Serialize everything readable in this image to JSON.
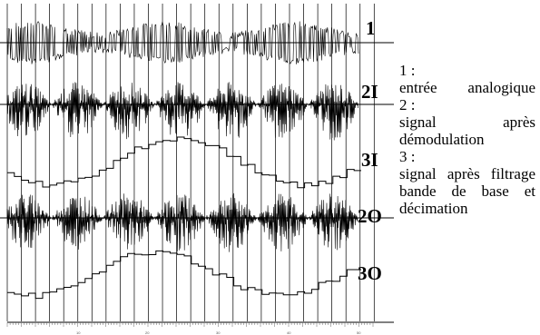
{
  "figure": {
    "channel_labels": [
      "1",
      "2I",
      "3I",
      "2O",
      "3O"
    ],
    "axis_tick_labels": [
      "10",
      "20",
      "30",
      "40",
      "50"
    ]
  },
  "legend": {
    "line1_num": "1 :",
    "line1_text": "entrée analogique",
    "line2_num": "2 :",
    "line2_text": "signal après démodulation",
    "line3_num": "3 :",
    "line3_text": "signal après filtrage bande de base et décimation"
  },
  "colors": {
    "trace": "#000000",
    "grid": "#000000",
    "background": "#ffffff"
  }
}
